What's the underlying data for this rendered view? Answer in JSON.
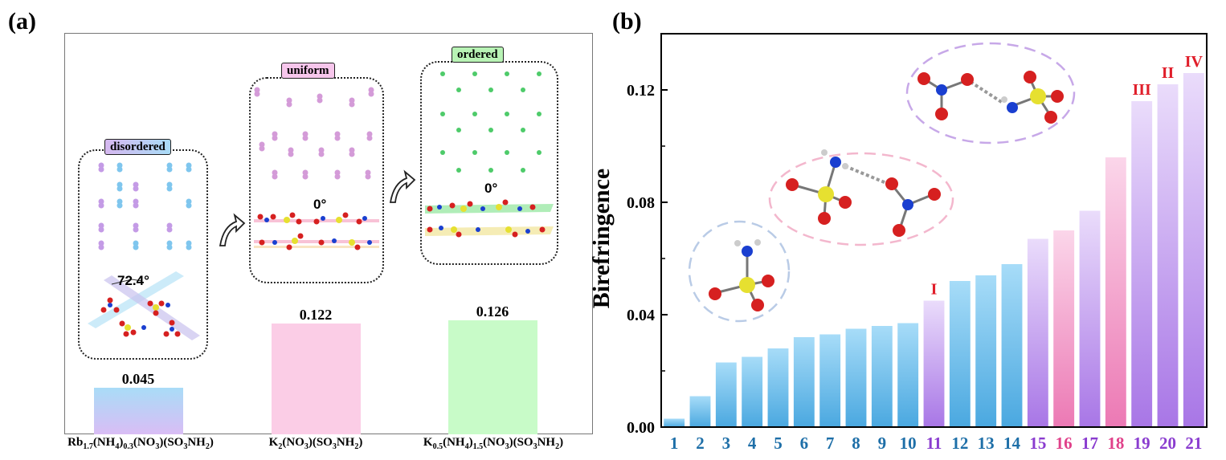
{
  "panel_a": {
    "label": "(a)",
    "boxes": [
      {
        "tag": "disordered",
        "angle": "72.4°",
        "value": "0.045"
      },
      {
        "tag": "uniform",
        "angle": "0°",
        "value": "0.122"
      },
      {
        "tag": "ordered",
        "angle": "0°",
        "value": "0.126"
      }
    ],
    "compounds": {
      "c1": {
        "a": "Rb",
        "s1": "1.7",
        "b": "(NH",
        "s2": "4",
        "c": ")",
        "s3": "0.3",
        "d": "(NO",
        "s4": "3",
        "e": ")(SO",
        "s5": "3",
        "f": "NH",
        "s6": "2",
        "g": ")"
      },
      "c2": {
        "a": "K",
        "s1": "2",
        "b": "(NO",
        "s2": "3",
        "c": ")(SO",
        "s3": "3",
        "d": "NH",
        "s4": "2",
        "e": ")"
      },
      "c3": {
        "a": "K",
        "s1": "0.5",
        "b": "(NH",
        "s2": "4",
        "c": ")",
        "s3": "1.5",
        "d": "(NO",
        "s4": "3",
        "e": ")(SO",
        "s5": "3",
        "f": "NH",
        "s6": "2",
        "g": ")"
      }
    },
    "colors": {
      "disordered": "#b9e4fb",
      "uniform": "#fbcfe6",
      "ordered": "#cbfbc9"
    }
  },
  "panel_b": {
    "label": "(b)",
    "roman_labels": [
      {
        "text": "I",
        "index": 11
      },
      {
        "text": "III",
        "index": 19
      },
      {
        "text": "II",
        "index": 20
      },
      {
        "text": "IV",
        "index": 21
      }
    ]
  },
  "chart_data": [
    {
      "type": "bar",
      "title": "",
      "categories": [
        "Rb1.7(NH4)0.3(NO3)(SO3NH2)",
        "K2(NO3)(SO3NH2)",
        "K0.5(NH4)1.5(NO3)(SO3NH2)"
      ],
      "values": [
        0.045,
        0.122,
        0.126
      ],
      "ylim": [
        0,
        0.175
      ]
    },
    {
      "type": "bar",
      "title": "",
      "xlabel": "",
      "ylabel": "Birefringence",
      "categories": [
        "1",
        "2",
        "3",
        "4",
        "5",
        "6",
        "7",
        "8",
        "9",
        "10",
        "11",
        "12",
        "13",
        "14",
        "15",
        "16",
        "17",
        "18",
        "19",
        "20",
        "21"
      ],
      "values": [
        0.003,
        0.011,
        0.023,
        0.025,
        0.028,
        0.032,
        0.033,
        0.035,
        0.036,
        0.037,
        0.045,
        0.052,
        0.054,
        0.058,
        0.067,
        0.07,
        0.077,
        0.096,
        0.116,
        0.122,
        0.126
      ],
      "groups": [
        "blue",
        "blue",
        "blue",
        "blue",
        "blue",
        "blue",
        "blue",
        "blue",
        "blue",
        "blue",
        "purple",
        "blue",
        "blue",
        "blue",
        "purple",
        "pink",
        "purple",
        "pink",
        "purple",
        "purple",
        "purple"
      ],
      "yticks": [
        0.0,
        0.04,
        0.08,
        0.12
      ],
      "ytick_labels": [
        "0.00",
        "0.04",
        "0.08",
        "0.12"
      ],
      "ylim": [
        0,
        0.14
      ],
      "colors": {
        "blue": "#5bb5ea",
        "purple": "#b88ae8",
        "pink": "#f08cbf",
        "label_blue": "#1e6fa8",
        "label_purple": "#8a3ccf",
        "label_pink": "#e0418a",
        "roman": "#e01e2a"
      }
    }
  ]
}
